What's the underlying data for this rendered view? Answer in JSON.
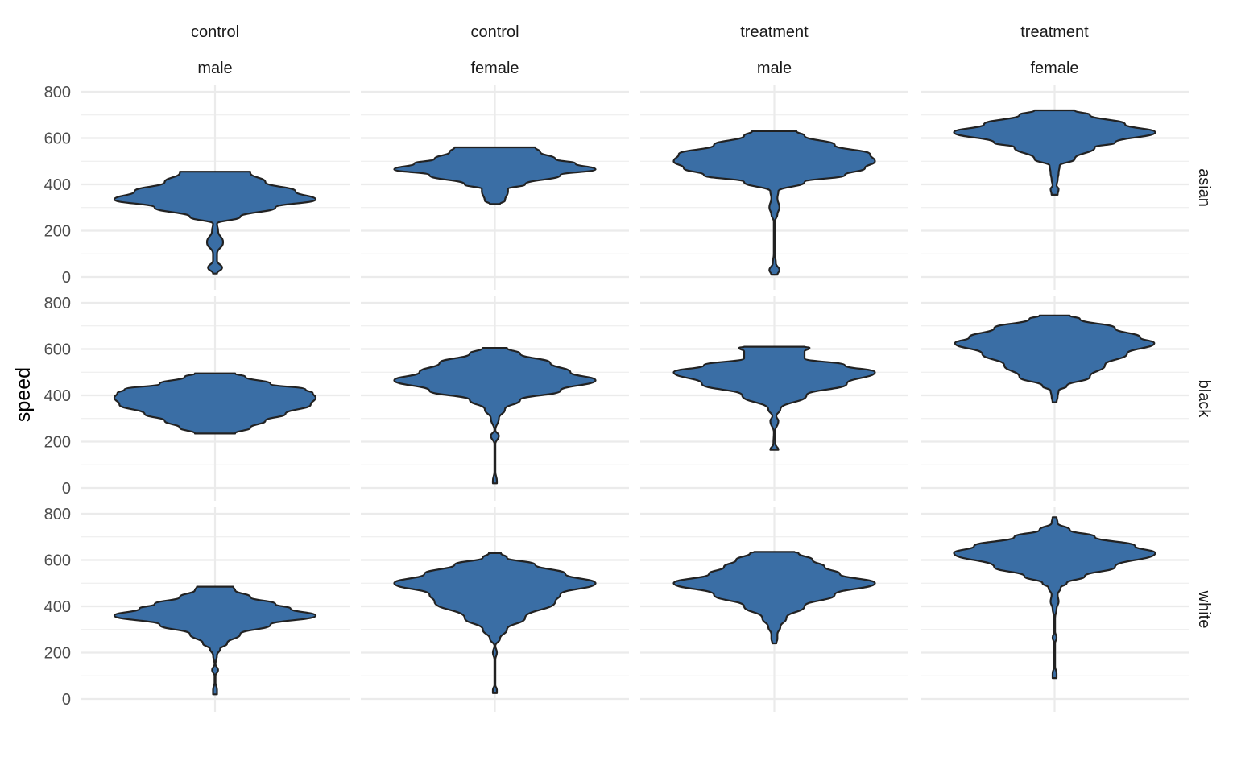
{
  "chart_data": {
    "type": "violin",
    "ylabel": "speed",
    "ylim": [
      0,
      800
    ],
    "yticks": [
      0,
      200,
      400,
      600,
      800
    ],
    "grid": true,
    "columns": [
      {
        "group": "control",
        "sex": "male"
      },
      {
        "group": "control",
        "sex": "female"
      },
      {
        "group": "treatment",
        "sex": "male"
      },
      {
        "group": "treatment",
        "sex": "female"
      }
    ],
    "rows": [
      "asian",
      "black",
      "white"
    ],
    "fill_color": "#3a6ea5",
    "outline_color": "#222222",
    "panels": [
      [
        {
          "profile": [
            [
              15,
              0.02
            ],
            [
              40,
              0.07
            ],
            [
              70,
              0.02
            ],
            [
              100,
              0.02
            ],
            [
              150,
              0.08
            ],
            [
              200,
              0.03
            ],
            [
              230,
              0.02
            ],
            [
              260,
              0.25
            ],
            [
              300,
              0.6
            ],
            [
              335,
              1.0
            ],
            [
              370,
              0.8
            ],
            [
              410,
              0.5
            ],
            [
              450,
              0.35
            ],
            [
              455,
              0.35
            ]
          ]
        },
        {
          "profile": [
            [
              315,
              0.05
            ],
            [
              330,
              0.1
            ],
            [
              370,
              0.13
            ],
            [
              380,
              0.13
            ],
            [
              400,
              0.3
            ],
            [
              440,
              0.65
            ],
            [
              465,
              1.0
            ],
            [
              490,
              0.8
            ],
            [
              510,
              0.6
            ],
            [
              540,
              0.45
            ],
            [
              560,
              0.4
            ]
          ]
        },
        {
          "profile": [
            [
              10,
              0.03
            ],
            [
              30,
              0.05
            ],
            [
              60,
              0.015
            ],
            [
              100,
              0.006
            ],
            [
              240,
              0.006
            ],
            [
              270,
              0.03
            ],
            [
              300,
              0.05
            ],
            [
              340,
              0.03
            ],
            [
              370,
              0.04
            ],
            [
              410,
              0.3
            ],
            [
              440,
              0.7
            ],
            [
              470,
              0.9
            ],
            [
              500,
              1.0
            ],
            [
              530,
              0.95
            ],
            [
              570,
              0.6
            ],
            [
              610,
              0.3
            ],
            [
              630,
              0.22
            ]
          ]
        },
        {
          "profile": [
            [
              355,
              0.03
            ],
            [
              380,
              0.04
            ],
            [
              395,
              0.02
            ],
            [
              420,
              0.03
            ],
            [
              450,
              0.04
            ],
            [
              480,
              0.05
            ],
            [
              510,
              0.2
            ],
            [
              560,
              0.4
            ],
            [
              580,
              0.6
            ],
            [
              625,
              1.0
            ],
            [
              660,
              0.7
            ],
            [
              700,
              0.35
            ],
            [
              720,
              0.2
            ]
          ]
        }
      ],
      [
        {
          "profile": [
            [
              235,
              0.2
            ],
            [
              260,
              0.35
            ],
            [
              290,
              0.5
            ],
            [
              320,
              0.7
            ],
            [
              360,
              0.95
            ],
            [
              390,
              1.0
            ],
            [
              410,
              0.97
            ],
            [
              425,
              0.9
            ],
            [
              450,
              0.55
            ],
            [
              480,
              0.3
            ],
            [
              495,
              0.2
            ]
          ]
        },
        {
          "profile": [
            [
              20,
              0.02
            ],
            [
              30,
              0.02
            ],
            [
              70,
              0.005
            ],
            [
              190,
              0.005
            ],
            [
              225,
              0.04
            ],
            [
              250,
              0.005
            ],
            [
              300,
              0.04
            ],
            [
              340,
              0.1
            ],
            [
              380,
              0.25
            ],
            [
              420,
              0.65
            ],
            [
              465,
              1.0
            ],
            [
              500,
              0.75
            ],
            [
              540,
              0.55
            ],
            [
              580,
              0.25
            ],
            [
              605,
              0.12
            ]
          ]
        },
        {
          "profile": [
            [
              165,
              0.04
            ],
            [
              190,
              0.01
            ],
            [
              240,
              0.005
            ],
            [
              290,
              0.04
            ],
            [
              310,
              0.02
            ],
            [
              340,
              0.06
            ],
            [
              400,
              0.32
            ],
            [
              450,
              0.72
            ],
            [
              500,
              1.0
            ],
            [
              530,
              0.7
            ],
            [
              560,
              0.3
            ],
            [
              590,
              0.3
            ],
            [
              605,
              0.35
            ],
            [
              610,
              0.3
            ]
          ]
        },
        {
          "profile": [
            [
              370,
              0.02
            ],
            [
              395,
              0.03
            ],
            [
              420,
              0.04
            ],
            [
              440,
              0.12
            ],
            [
              480,
              0.35
            ],
            [
              530,
              0.5
            ],
            [
              580,
              0.72
            ],
            [
              625,
              0.99
            ],
            [
              650,
              0.85
            ],
            [
              690,
              0.6
            ],
            [
              730,
              0.25
            ],
            [
              745,
              0.15
            ]
          ]
        }
      ],
      [
        {
          "profile": [
            [
              20,
              0.02
            ],
            [
              40,
              0.02
            ],
            [
              70,
              0.005
            ],
            [
              100,
              0.005
            ],
            [
              125,
              0.03
            ],
            [
              150,
              0.005
            ],
            [
              190,
              0.02
            ],
            [
              215,
              0.05
            ],
            [
              240,
              0.12
            ],
            [
              280,
              0.25
            ],
            [
              320,
              0.55
            ],
            [
              360,
              1.0
            ],
            [
              390,
              0.75
            ],
            [
              410,
              0.6
            ],
            [
              440,
              0.35
            ],
            [
              470,
              0.2
            ],
            [
              485,
              0.18
            ]
          ]
        },
        {
          "profile": [
            [
              25,
              0.02
            ],
            [
              40,
              0.02
            ],
            [
              60,
              0.005
            ],
            [
              170,
              0.005
            ],
            [
              200,
              0.02
            ],
            [
              230,
              0.005
            ],
            [
              260,
              0.05
            ],
            [
              300,
              0.12
            ],
            [
              350,
              0.3
            ],
            [
              420,
              0.6
            ],
            [
              450,
              0.65
            ],
            [
              500,
              1.0
            ],
            [
              540,
              0.7
            ],
            [
              580,
              0.4
            ],
            [
              610,
              0.12
            ],
            [
              630,
              0.06
            ]
          ]
        },
        {
          "profile": [
            [
              240,
              0.02
            ],
            [
              260,
              0.03
            ],
            [
              280,
              0.03
            ],
            [
              310,
              0.06
            ],
            [
              350,
              0.12
            ],
            [
              400,
              0.3
            ],
            [
              450,
              0.6
            ],
            [
              500,
              1.0
            ],
            [
              540,
              0.65
            ],
            [
              570,
              0.5
            ],
            [
              600,
              0.38
            ],
            [
              630,
              0.24
            ],
            [
              635,
              0.2
            ]
          ]
        },
        {
          "profile": [
            [
              90,
              0.02
            ],
            [
              110,
              0.02
            ],
            [
              140,
              0.005
            ],
            [
              240,
              0.005
            ],
            [
              265,
              0.02
            ],
            [
              290,
              0.005
            ],
            [
              350,
              0.005
            ],
            [
              390,
              0.02
            ],
            [
              420,
              0.04
            ],
            [
              450,
              0.03
            ],
            [
              480,
              0.06
            ],
            [
              500,
              0.12
            ],
            [
              530,
              0.3
            ],
            [
              570,
              0.6
            ],
            [
              630,
              1.0
            ],
            [
              660,
              0.8
            ],
            [
              700,
              0.4
            ],
            [
              730,
              0.15
            ],
            [
              760,
              0.03
            ],
            [
              785,
              0.02
            ]
          ]
        }
      ]
    ]
  }
}
